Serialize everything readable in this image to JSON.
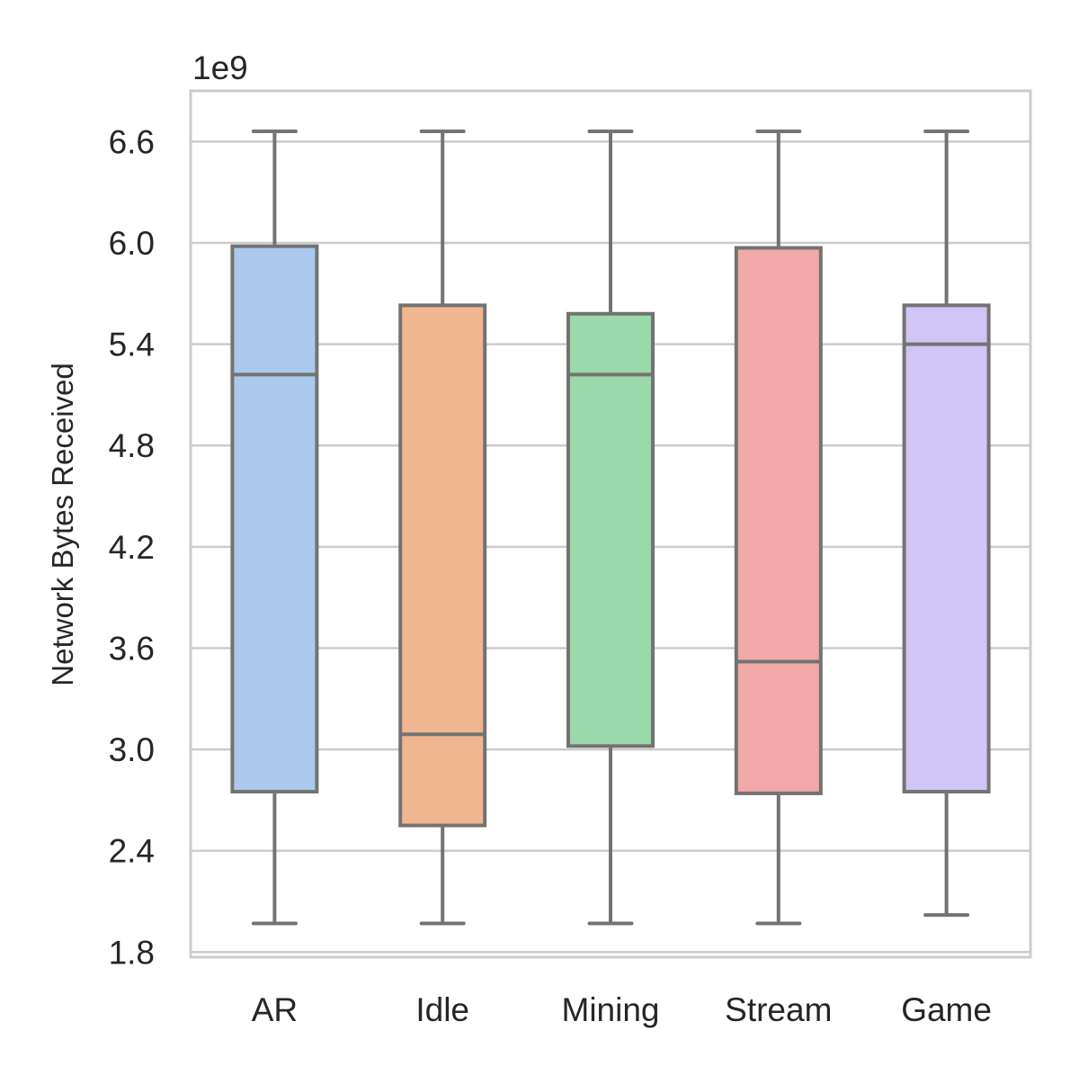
{
  "chart_data": {
    "type": "box",
    "title": "",
    "xlabel": "",
    "ylabel": "Network Bytes Received",
    "y_offset_label": "1e9",
    "y_scale_factor": 1000000000,
    "ylim": [
      1.77,
      6.9
    ],
    "y_ticks": [
      1.8,
      2.4,
      3.0,
      3.6,
      4.2,
      4.8,
      5.4,
      6.0,
      6.6
    ],
    "y_tick_labels": [
      "1.8",
      "2.4",
      "3.0",
      "3.6",
      "4.2",
      "4.8",
      "5.4",
      "6.0",
      "6.6"
    ],
    "grid": "horizontal",
    "categories": [
      "AR",
      "Idle",
      "Mining",
      "Stream",
      "Game"
    ],
    "boxes": [
      {
        "category": "AR",
        "whisker_low": 1.97,
        "q1": 2.75,
        "median": 5.22,
        "q3": 5.98,
        "whisker_high": 6.66,
        "color": "#abc9ec"
      },
      {
        "category": "Idle",
        "whisker_low": 1.97,
        "q1": 2.55,
        "median": 3.09,
        "q3": 5.63,
        "whisker_high": 6.66,
        "color": "#f0b690"
      },
      {
        "category": "Mining",
        "whisker_low": 1.97,
        "q1": 3.02,
        "median": 5.22,
        "q3": 5.58,
        "whisker_high": 6.66,
        "color": "#9ad9aa"
      },
      {
        "category": "Stream",
        "whisker_low": 1.97,
        "q1": 2.74,
        "median": 3.52,
        "q3": 5.97,
        "whisker_high": 6.66,
        "color": "#f2a9a8"
      },
      {
        "category": "Game",
        "whisker_low": 2.02,
        "q1": 2.75,
        "median": 5.4,
        "q3": 5.63,
        "whisker_high": 6.66,
        "color": "#d1c4f6"
      }
    ],
    "line_color": "#737373",
    "grid_color": "#cccccc",
    "frame_color": "#cccccc"
  }
}
